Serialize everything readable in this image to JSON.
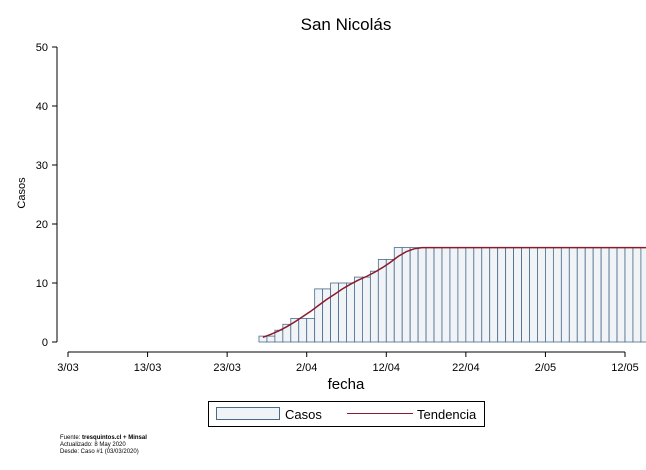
{
  "chart_data": {
    "type": "bar",
    "title": "San Nicolás",
    "xlabel": "fecha",
    "ylabel": "Casos",
    "ylim": [
      0,
      50
    ],
    "yticks": [
      0,
      10,
      20,
      30,
      40,
      50
    ],
    "xticks": [
      "3/03",
      "13/03",
      "23/03",
      "2/04",
      "12/04",
      "22/04",
      "2/05",
      "12/05"
    ],
    "xlim": [
      "2020-03-03",
      "2020-05-12"
    ],
    "start_date": "2020-03-27",
    "series": [
      {
        "name": "Casos",
        "type": "bar",
        "values": [
          1,
          1,
          2,
          3,
          4,
          4,
          4,
          9,
          9,
          10,
          10,
          10,
          11,
          11,
          12,
          14,
          14,
          16,
          16,
          16,
          16,
          16,
          16,
          16,
          16,
          16,
          16,
          16,
          16,
          16,
          16,
          16,
          16,
          16,
          16,
          16,
          16,
          16,
          16,
          16,
          16,
          16,
          16,
          16,
          16,
          16,
          16,
          16,
          16,
          16,
          16,
          16,
          16,
          16,
          16,
          16,
          16,
          16,
          16,
          16,
          16,
          16,
          16,
          16,
          16,
          16,
          16,
          16,
          16,
          16
        ]
      },
      {
        "name": "Tendencia",
        "type": "line",
        "values": [
          0.8,
          1.3,
          1.9,
          2.6,
          3.4,
          4.3,
          5.2,
          6.2,
          7.2,
          8.1,
          9.0,
          9.8,
          10.5,
          11.1,
          11.8,
          12.6,
          13.5,
          14.5,
          15.3,
          15.8,
          16,
          16,
          16,
          16,
          16,
          16,
          16,
          16,
          16,
          16,
          16,
          16,
          16,
          16,
          16,
          16,
          16,
          16,
          16,
          16,
          16,
          16,
          16,
          16,
          16,
          16,
          16,
          16,
          16,
          16,
          16,
          16,
          16,
          16,
          16,
          16,
          16,
          16,
          16,
          16,
          16,
          16,
          16,
          16,
          16,
          16,
          16,
          16,
          16,
          16
        ]
      }
    ],
    "legend_position": "bottom",
    "grid": false
  },
  "colors": {
    "bar_fill": "#f1f4f7",
    "bar_stroke": "#4a6a8a",
    "trend": "#8b1a2b"
  },
  "legend": {
    "bar_label": "Casos",
    "line_label": "Tendencia"
  },
  "source": {
    "prefix": "Fuente: ",
    "bold": "tresquintos.cl + Minsal",
    "updated": "Actualizado: 8 May 2020",
    "since": "Desde: Caso #1  (03/03/2020)"
  }
}
